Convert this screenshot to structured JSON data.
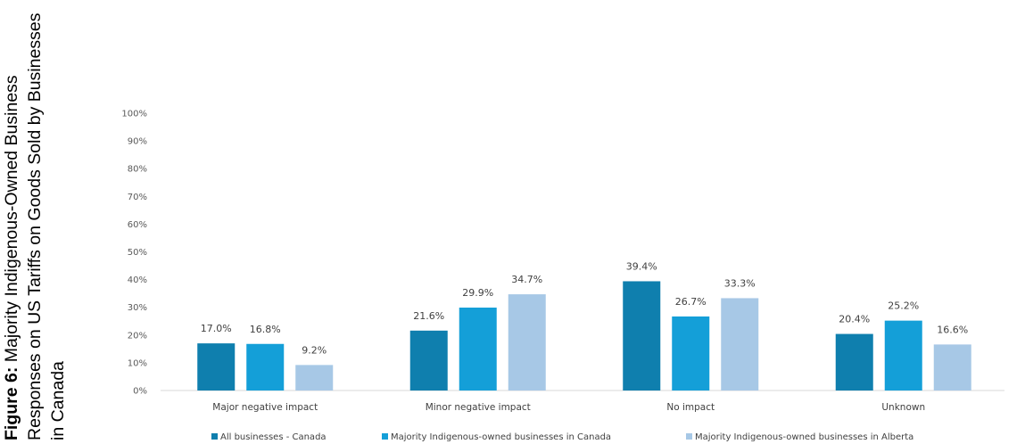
{
  "figure": {
    "label": "Figure 6:",
    "title": "Majority Indigenous-Owned Business Responses on US Tariffs on Goods Sold by Businesses in Canada"
  },
  "chart_data": {
    "type": "bar",
    "title": "",
    "xlabel": "",
    "ylabel": "",
    "ylim": [
      0,
      100
    ],
    "y_ticks": [
      "0%",
      "10%",
      "20%",
      "30%",
      "40%",
      "50%",
      "60%",
      "70%",
      "80%",
      "90%",
      "100%"
    ],
    "grid": false,
    "legend_position": "bottom",
    "categories": [
      "Major negative impact",
      "Minor negative impact",
      "No impact",
      "Unknown"
    ],
    "series": [
      {
        "name": "All businesses - Canada",
        "color": "#0f7fae",
        "values": [
          17.0,
          21.6,
          39.4,
          20.4
        ],
        "labels": [
          "17.0%",
          "21.6%",
          "39.4%",
          "20.4%"
        ]
      },
      {
        "name": "Majority Indigenous-owned businesses in Canada",
        "color": "#149fd8",
        "values": [
          16.8,
          29.9,
          26.7,
          25.2
        ],
        "labels": [
          "16.8%",
          "29.9%",
          "26.7%",
          "25.2%"
        ]
      },
      {
        "name": "Majority Indigenous-owned businesses in Alberta",
        "color": "#a7c8e6",
        "values": [
          9.2,
          34.7,
          33.3,
          16.6
        ],
        "labels": [
          "9.2%",
          "34.7%",
          "33.3%",
          "16.6%"
        ]
      }
    ]
  }
}
